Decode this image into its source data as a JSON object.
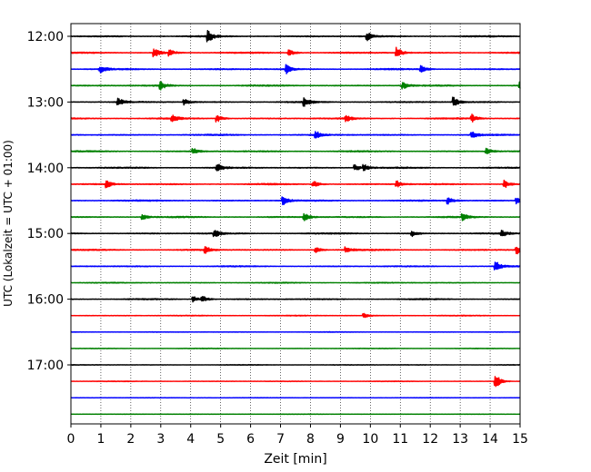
{
  "chart_data": {
    "type": "line",
    "title": "",
    "xlabel": "Zeit  [min]",
    "ylabel": "UTC (Lokalzeit = UTC + 01:00)",
    "xlim": [
      0,
      15
    ],
    "x_ticks": [
      "0",
      "1",
      "2",
      "3",
      "4",
      "5",
      "6",
      "7",
      "8",
      "9",
      "10",
      "11",
      "12",
      "13",
      "14",
      "15"
    ],
    "y_tick_labels": [
      "12:00",
      "13:00",
      "14:00",
      "15:00",
      "16:00",
      "17:00"
    ],
    "grid": "vertical dotted lines at each minute",
    "trace_interval_minutes": 15,
    "color_cycle": [
      "#000000",
      "#ff0000",
      "#0000ff",
      "#008000"
    ],
    "series": [
      {
        "start": "12:00",
        "amplitude": 0.8,
        "events": [
          [
            4.6,
            1.9
          ],
          [
            9.9,
            1.6
          ]
        ]
      },
      {
        "start": "12:15",
        "amplitude": 0.8,
        "events": [
          [
            2.8,
            1.8
          ],
          [
            3.3,
            1.2
          ],
          [
            7.3,
            1.2
          ],
          [
            10.9,
            1.9
          ]
        ]
      },
      {
        "start": "12:30",
        "amplitude": 0.8,
        "events": [
          [
            1.0,
            1.3
          ],
          [
            7.2,
            1.6
          ],
          [
            11.7,
            1.4
          ]
        ]
      },
      {
        "start": "12:45",
        "amplitude": 0.8,
        "events": [
          [
            3.0,
            1.4
          ],
          [
            11.1,
            1.3
          ],
          [
            15.0,
            1.3
          ]
        ]
      },
      {
        "start": "13:00",
        "amplitude": 0.8,
        "events": [
          [
            1.6,
            1.4
          ],
          [
            3.8,
            1.0
          ],
          [
            7.8,
            1.6
          ],
          [
            12.8,
            1.7
          ]
        ]
      },
      {
        "start": "13:15",
        "amplitude": 0.8,
        "events": [
          [
            3.4,
            1.3
          ],
          [
            4.9,
            1.2
          ],
          [
            9.2,
            1.1
          ],
          [
            13.4,
            1.4
          ]
        ]
      },
      {
        "start": "13:30",
        "amplitude": 0.8,
        "events": [
          [
            8.2,
            1.2
          ],
          [
            13.4,
            1.2
          ]
        ]
      },
      {
        "start": "13:45",
        "amplitude": 0.8,
        "events": [
          [
            4.1,
            1.1
          ],
          [
            13.9,
            1.1
          ]
        ]
      },
      {
        "start": "14:00",
        "amplitude": 0.8,
        "events": [
          [
            4.9,
            1.5
          ],
          [
            9.5,
            1.2
          ],
          [
            9.8,
            1.2
          ]
        ]
      },
      {
        "start": "14:15",
        "amplitude": 0.8,
        "events": [
          [
            1.2,
            1.2
          ],
          [
            8.1,
            1.3
          ],
          [
            10.9,
            1.1
          ],
          [
            14.5,
            1.4
          ]
        ]
      },
      {
        "start": "14:30",
        "amplitude": 0.8,
        "events": [
          [
            7.1,
            1.4
          ],
          [
            12.6,
            1.4
          ],
          [
            14.9,
            1.1
          ]
        ]
      },
      {
        "start": "14:45",
        "amplitude": 0.8,
        "events": [
          [
            2.4,
            1.0
          ],
          [
            7.8,
            1.4
          ],
          [
            13.1,
            1.1
          ]
        ]
      },
      {
        "start": "15:00",
        "amplitude": 0.8,
        "events": [
          [
            4.8,
            1.6
          ],
          [
            11.4,
            1.0
          ],
          [
            14.4,
            1.1
          ]
        ]
      },
      {
        "start": "15:15",
        "amplitude": 0.8,
        "events": [
          [
            4.5,
            1.2
          ],
          [
            8.2,
            0.9
          ],
          [
            9.2,
            1.0
          ],
          [
            14.9,
            1.4
          ]
        ]
      },
      {
        "start": "15:30",
        "amplitude": 0.7,
        "events": [
          [
            14.2,
            1.7
          ]
        ]
      },
      {
        "start": "15:45",
        "amplitude": 0.6,
        "events": []
      },
      {
        "start": "16:00",
        "amplitude": 0.7,
        "events": [
          [
            4.1,
            1.0
          ],
          [
            4.4,
            1.2
          ]
        ]
      },
      {
        "start": "16:15",
        "amplitude": 0.5,
        "events": [
          [
            9.8,
            0.9
          ]
        ]
      },
      {
        "start": "16:30",
        "amplitude": 0.4,
        "events": []
      },
      {
        "start": "16:45",
        "amplitude": 0.4,
        "events": []
      },
      {
        "start": "17:00",
        "amplitude": 0.4,
        "events": []
      },
      {
        "start": "17:15",
        "amplitude": 0.4,
        "events": [
          [
            14.2,
            2.6
          ]
        ]
      },
      {
        "start": "17:30",
        "amplitude": 0.3,
        "events": []
      },
      {
        "start": "17:45",
        "amplitude": 0.3,
        "events": []
      }
    ]
  }
}
